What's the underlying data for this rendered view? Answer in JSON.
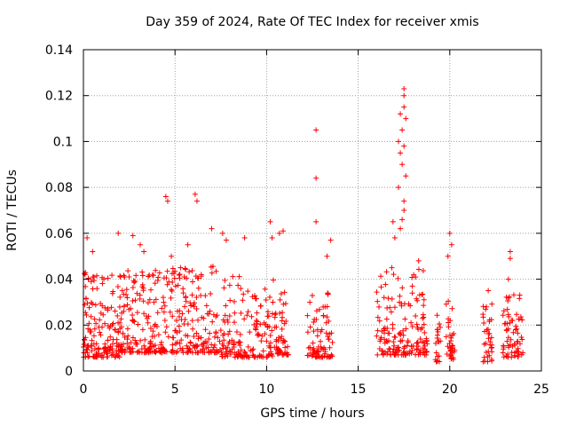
{
  "chart_data": {
    "type": "scatter",
    "title": "Day 359 of 2024, Rate Of TEC Index for receiver xmis",
    "xlabel": "GPS time / hours",
    "ylabel": "ROTI / TECUs",
    "xlim": [
      0,
      25
    ],
    "ylim": [
      0,
      0.14
    ],
    "x_ticks": [
      "0",
      "5",
      "10",
      "15",
      "20",
      "25"
    ],
    "y_ticks": [
      "0",
      "0.02",
      "0.04",
      "0.06",
      "0.08",
      "0.1",
      "0.12",
      "0.14"
    ],
    "grid": true,
    "marker": "+",
    "color": "#ff0000",
    "density_segments": [
      {
        "x0": 0.0,
        "x1": 2.0,
        "n": 160,
        "base": 0.014,
        "spread": 0.03
      },
      {
        "x0": 2.0,
        "x1": 4.5,
        "n": 170,
        "base": 0.016,
        "spread": 0.03
      },
      {
        "x0": 4.5,
        "x1": 7.5,
        "n": 170,
        "base": 0.016,
        "spread": 0.03
      },
      {
        "x0": 7.5,
        "x1": 10.5,
        "n": 160,
        "base": 0.014,
        "spread": 0.028
      },
      {
        "x0": 10.5,
        "x1": 11.2,
        "n": 50,
        "base": 0.015,
        "spread": 0.02
      },
      {
        "x0": 12.2,
        "x1": 13.6,
        "n": 80,
        "base": 0.014,
        "spread": 0.022
      },
      {
        "x0": 16.0,
        "x1": 18.8,
        "n": 170,
        "base": 0.015,
        "spread": 0.03
      },
      {
        "x0": 19.2,
        "x1": 19.5,
        "n": 20,
        "base": 0.012,
        "spread": 0.015
      },
      {
        "x0": 19.8,
        "x1": 20.3,
        "n": 35,
        "base": 0.013,
        "spread": 0.02
      },
      {
        "x0": 21.8,
        "x1": 22.3,
        "n": 35,
        "base": 0.012,
        "spread": 0.018
      },
      {
        "x0": 22.9,
        "x1": 24.0,
        "n": 70,
        "base": 0.014,
        "spread": 0.02
      }
    ],
    "peaks": [
      {
        "x": 0.2,
        "y": 0.058
      },
      {
        "x": 0.5,
        "y": 0.052
      },
      {
        "x": 1.9,
        "y": 0.06
      },
      {
        "x": 2.7,
        "y": 0.059
      },
      {
        "x": 3.1,
        "y": 0.055
      },
      {
        "x": 3.3,
        "y": 0.052
      },
      {
        "x": 4.5,
        "y": 0.076
      },
      {
        "x": 4.6,
        "y": 0.074
      },
      {
        "x": 4.8,
        "y": 0.05
      },
      {
        "x": 5.7,
        "y": 0.055
      },
      {
        "x": 6.1,
        "y": 0.077
      },
      {
        "x": 6.2,
        "y": 0.074
      },
      {
        "x": 7.0,
        "y": 0.062
      },
      {
        "x": 7.6,
        "y": 0.06
      },
      {
        "x": 7.8,
        "y": 0.057
      },
      {
        "x": 8.8,
        "y": 0.058
      },
      {
        "x": 10.2,
        "y": 0.065
      },
      {
        "x": 10.3,
        "y": 0.058
      },
      {
        "x": 10.7,
        "y": 0.06
      },
      {
        "x": 10.9,
        "y": 0.061
      },
      {
        "x": 12.7,
        "y": 0.105
      },
      {
        "x": 12.7,
        "y": 0.084
      },
      {
        "x": 12.7,
        "y": 0.065
      },
      {
        "x": 13.5,
        "y": 0.057
      },
      {
        "x": 13.3,
        "y": 0.05
      },
      {
        "x": 17.5,
        "y": 0.123
      },
      {
        "x": 17.5,
        "y": 0.12
      },
      {
        "x": 17.5,
        "y": 0.115
      },
      {
        "x": 17.3,
        "y": 0.112
      },
      {
        "x": 17.6,
        "y": 0.11
      },
      {
        "x": 17.4,
        "y": 0.105
      },
      {
        "x": 17.2,
        "y": 0.1
      },
      {
        "x": 17.5,
        "y": 0.098
      },
      {
        "x": 17.3,
        "y": 0.095
      },
      {
        "x": 17.4,
        "y": 0.09
      },
      {
        "x": 17.6,
        "y": 0.085
      },
      {
        "x": 17.2,
        "y": 0.08
      },
      {
        "x": 17.5,
        "y": 0.074
      },
      {
        "x": 17.5,
        "y": 0.07
      },
      {
        "x": 17.4,
        "y": 0.066
      },
      {
        "x": 17.3,
        "y": 0.062
      },
      {
        "x": 16.9,
        "y": 0.065
      },
      {
        "x": 17.0,
        "y": 0.058
      },
      {
        "x": 18.3,
        "y": 0.048
      },
      {
        "x": 20.0,
        "y": 0.06
      },
      {
        "x": 20.1,
        "y": 0.055
      },
      {
        "x": 19.9,
        "y": 0.05
      },
      {
        "x": 22.1,
        "y": 0.035
      },
      {
        "x": 23.3,
        "y": 0.052
      },
      {
        "x": 23.3,
        "y": 0.049
      },
      {
        "x": 23.2,
        "y": 0.04
      }
    ]
  }
}
